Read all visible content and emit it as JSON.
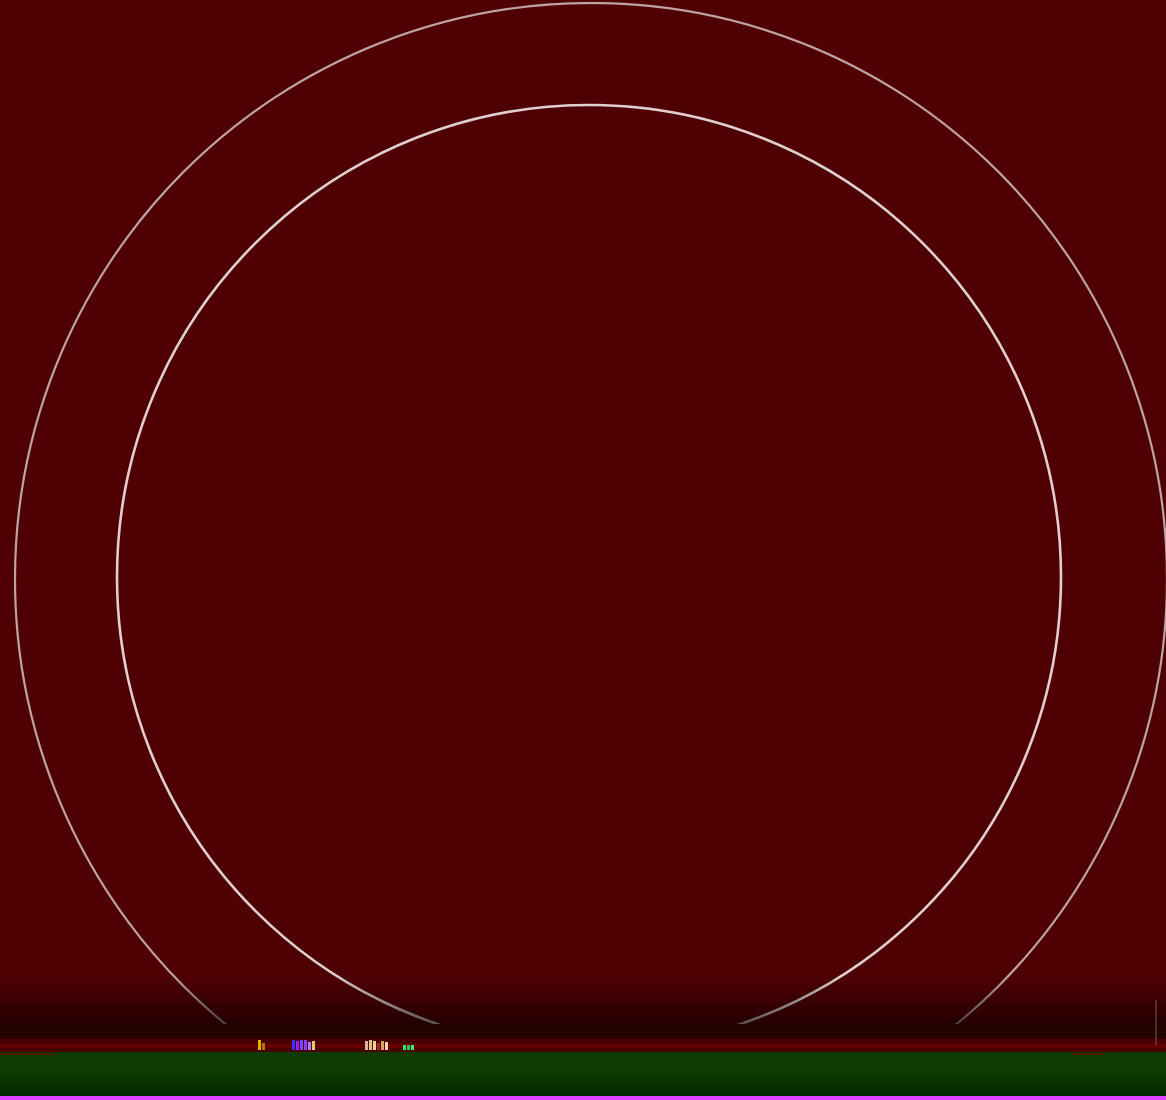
{
  "banner": {
    "caption": ""
  },
  "colors": {
    "background": "#4f0003",
    "status_dark_red": "#230400",
    "status_red": "#4a0000",
    "status_green": "#0f3c05",
    "accent_magenta": "#e043ff",
    "ring_stroke": "#e8dede"
  },
  "icons": {
    "outer_ring": "ring-icon",
    "inner_ring": "ring-icon"
  }
}
